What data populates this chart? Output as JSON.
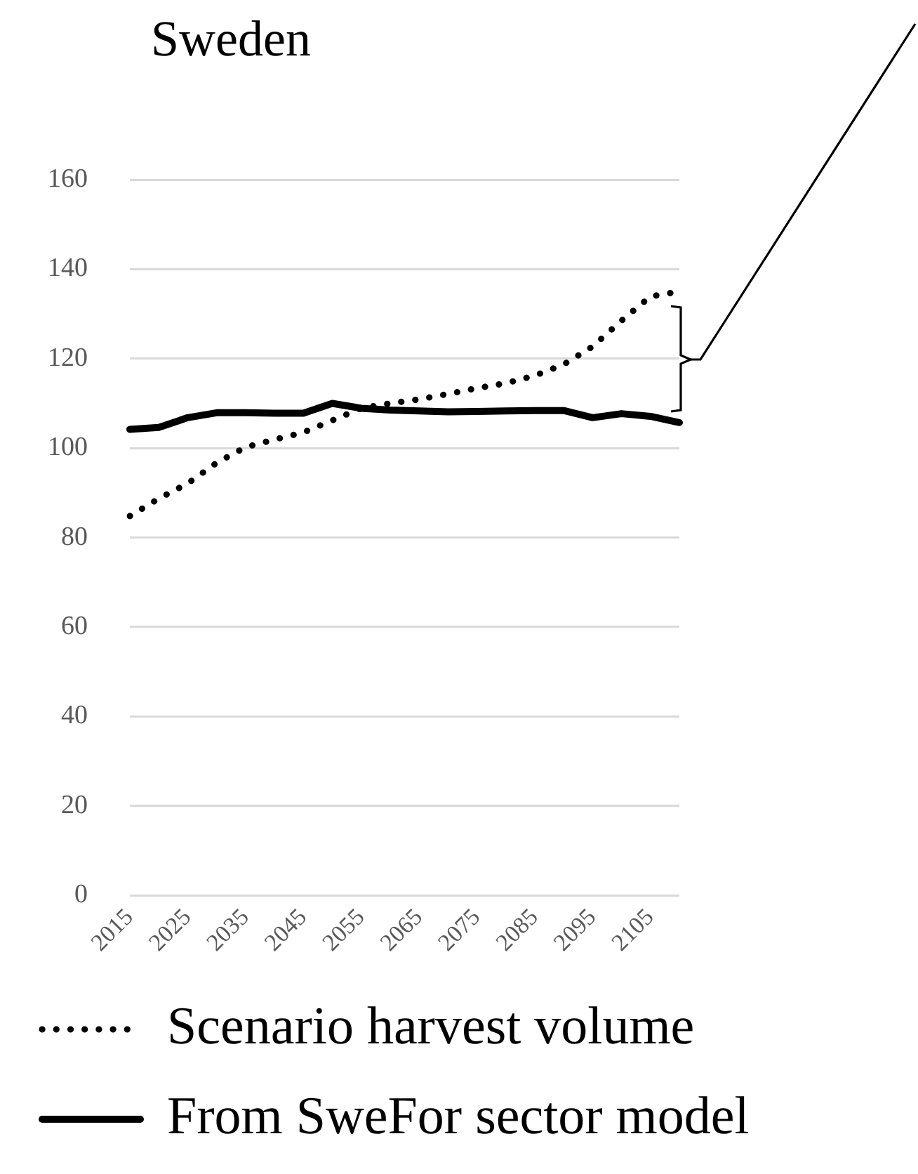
{
  "chart_data": {
    "type": "line",
    "title": "Sweden",
    "categories": [
      "2015",
      null,
      "2025",
      null,
      "2035",
      null,
      "2045",
      null,
      "2055",
      null,
      "2065",
      null,
      "2075",
      null,
      "2085",
      null,
      "2095",
      null,
      "2105",
      null
    ],
    "series": [
      {
        "name": "Scenario harvest volume",
        "color": "#000000",
        "line_style": "dotted",
        "values": [
          84.8,
          88.7,
          92.1,
          96.7,
          100.2,
          101.9,
          103.5,
          106.2,
          108.9,
          110.0,
          110.9,
          112.1,
          113.4,
          114.5,
          116.2,
          118.7,
          122.7,
          128.5,
          133.9,
          135.0
        ]
      },
      {
        "name": "From SweFor sector model",
        "color": "#000000",
        "line_style": "solid",
        "values": [
          104.2,
          104.6,
          106.8,
          107.9,
          107.9,
          107.8,
          107.8,
          110.0,
          108.9,
          108.5,
          108.3,
          108.1,
          108.2,
          108.3,
          108.4,
          108.4,
          106.8,
          107.7,
          107.1,
          105.7
        ]
      }
    ],
    "ylim": [
      0,
      160
    ],
    "yticks": [
      0,
      20,
      40,
      60,
      80,
      100,
      120,
      140,
      160
    ],
    "grid": "y",
    "legend": "bottom",
    "marker": "none"
  }
}
